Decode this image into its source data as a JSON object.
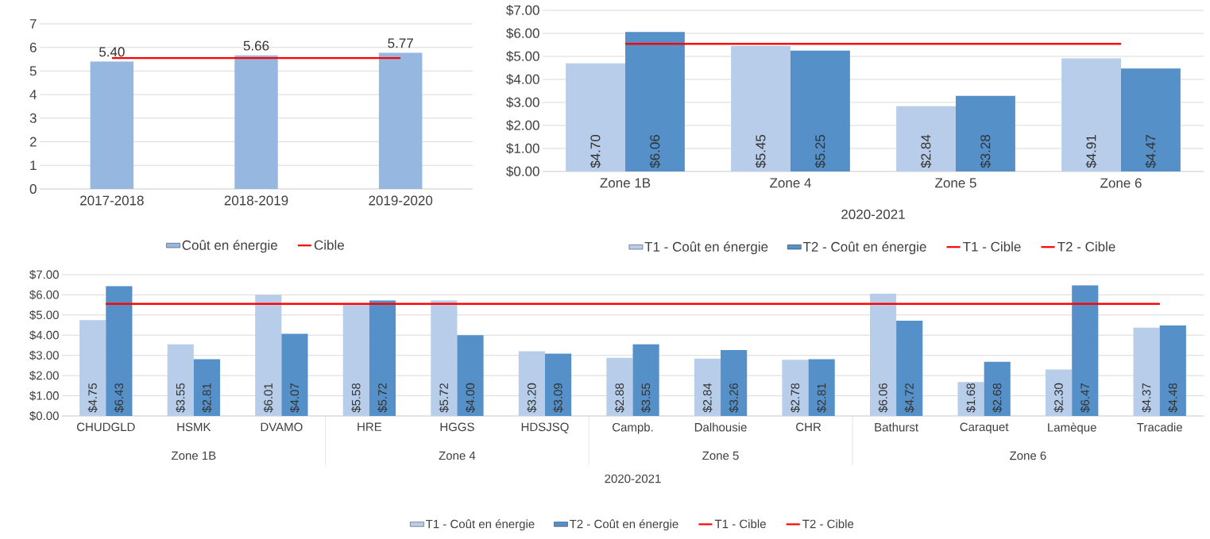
{
  "chart_data": [
    {
      "type": "bar",
      "categories": [
        "2017-2018",
        "2018-2019",
        "2019-2020"
      ],
      "series": [
        {
          "name": "Coût en énergie",
          "color": "#95b7e0",
          "values": [
            5.4,
            5.66,
            5.77
          ],
          "value_labels": [
            "5.40",
            "5.66",
            "5.77"
          ]
        },
        {
          "name": "Cible",
          "type": "line",
          "color": "#ff0000",
          "values": [
            5.55,
            5.55,
            5.55
          ]
        }
      ],
      "ylim": [
        0,
        7
      ],
      "yticks": [
        0,
        1,
        2,
        3,
        4,
        5,
        6,
        7
      ],
      "grid": "y",
      "legend": "bottom"
    },
    {
      "type": "bar",
      "categories": [
        "Zone 1B",
        "Zone 4",
        "Zone 5",
        "Zone 6"
      ],
      "xlabel": "2020-2021",
      "series": [
        {
          "name": "T1 - Coût en énergie",
          "color": "#b7cde9",
          "values": [
            4.7,
            5.45,
            2.84,
            4.91
          ],
          "value_labels": [
            "$4.70",
            "$5.45",
            "$2.84",
            "$4.91"
          ]
        },
        {
          "name": "T2 - Coût en énergie",
          "color": "#5590c8",
          "values": [
            6.06,
            5.25,
            3.28,
            4.47
          ],
          "value_labels": [
            "$6.06",
            "$5.25",
            "$3.28",
            "$4.47"
          ]
        },
        {
          "name": "T1 - Cible",
          "type": "line",
          "color": "#ff0000",
          "values": [
            5.55,
            5.55,
            5.55,
            5.55
          ]
        },
        {
          "name": "T2 - Cible",
          "type": "line",
          "color": "#ff0000",
          "values": [
            5.55,
            5.55,
            5.55,
            5.55
          ]
        }
      ],
      "ylim": [
        0,
        7
      ],
      "yticks": [
        {
          "value": 0,
          "label": "$0.00"
        },
        {
          "value": 1,
          "label": "$1.00"
        },
        {
          "value": 2,
          "label": "$2.00"
        },
        {
          "value": 3,
          "label": "$3.00"
        },
        {
          "value": 4,
          "label": "$4.00"
        },
        {
          "value": 5,
          "label": "$5.00"
        },
        {
          "value": 6,
          "label": "$6.00"
        },
        {
          "value": 7,
          "label": "$7.00"
        }
      ],
      "grid": "y",
      "legend": "bottom"
    },
    {
      "type": "bar",
      "categories": [
        "CHUDGLD",
        "HSMK",
        "DVAMO",
        "HRE",
        "HGGS",
        "HDSJSQ",
        "Campb.",
        "Dalhousie",
        "CHR",
        "Bathurst",
        "Caraquet",
        "Lamèque",
        "Tracadie"
      ],
      "xlabel": "2020-2021",
      "annotations": [
        "Zone 1B",
        "Zone 4",
        "Zone 5",
        "Zone 6"
      ],
      "series": [
        {
          "name": "T1 - Coût en énergie",
          "color": "#b7cde9",
          "values": [
            4.75,
            3.55,
            6.01,
            5.58,
            5.72,
            3.2,
            2.88,
            2.84,
            2.78,
            6.06,
            1.68,
            2.3,
            4.37
          ],
          "value_labels": [
            "$4.75",
            "$3.55",
            "$6.01",
            "$5.58",
            "$5.72",
            "$3.20",
            "$2.88",
            "$2.84",
            "$2.78",
            "$6.06",
            "$1.68",
            "$2.30",
            "$4.37"
          ]
        },
        {
          "name": "T2 - Coût en énergie",
          "color": "#5590c8",
          "values": [
            6.43,
            2.81,
            4.07,
            5.72,
            4.0,
            3.09,
            3.55,
            3.26,
            2.81,
            4.72,
            2.68,
            6.47,
            4.48
          ],
          "value_labels": [
            "$6.43",
            "$2.81",
            "$4.07",
            "$5.72",
            "$4.00",
            "$3.09",
            "$3.55",
            "$3.26",
            "$2.81",
            "$4.72",
            "$2.68",
            "$6.47",
            "$4.48"
          ]
        },
        {
          "name": "T1 - Cible",
          "type": "line",
          "color": "#ff0000",
          "values": [
            5.55,
            5.55,
            5.55,
            5.55,
            5.55,
            5.55,
            5.55,
            5.55,
            5.55,
            5.55,
            5.55,
            5.55,
            5.55
          ]
        },
        {
          "name": "T2 - Cible",
          "type": "line",
          "color": "#ff0000",
          "values": [
            5.55,
            5.55,
            5.55,
            5.55,
            5.55,
            5.55,
            5.55,
            5.55,
            5.55,
            5.55,
            5.55,
            5.55,
            5.55
          ]
        }
      ],
      "ylim": [
        0,
        7
      ],
      "yticks": [
        {
          "value": 0,
          "label": "$0.00"
        },
        {
          "value": 1,
          "label": "$1.00"
        },
        {
          "value": 2,
          "label": "$2.00"
        },
        {
          "value": 3,
          "label": "$3.00"
        },
        {
          "value": 4,
          "label": "$4.00"
        },
        {
          "value": 5,
          "label": "$5.00"
        },
        {
          "value": 6,
          "label": "$6.00"
        },
        {
          "value": 7,
          "label": "$7.00"
        }
      ],
      "grid": "y",
      "legend": "bottom"
    }
  ]
}
